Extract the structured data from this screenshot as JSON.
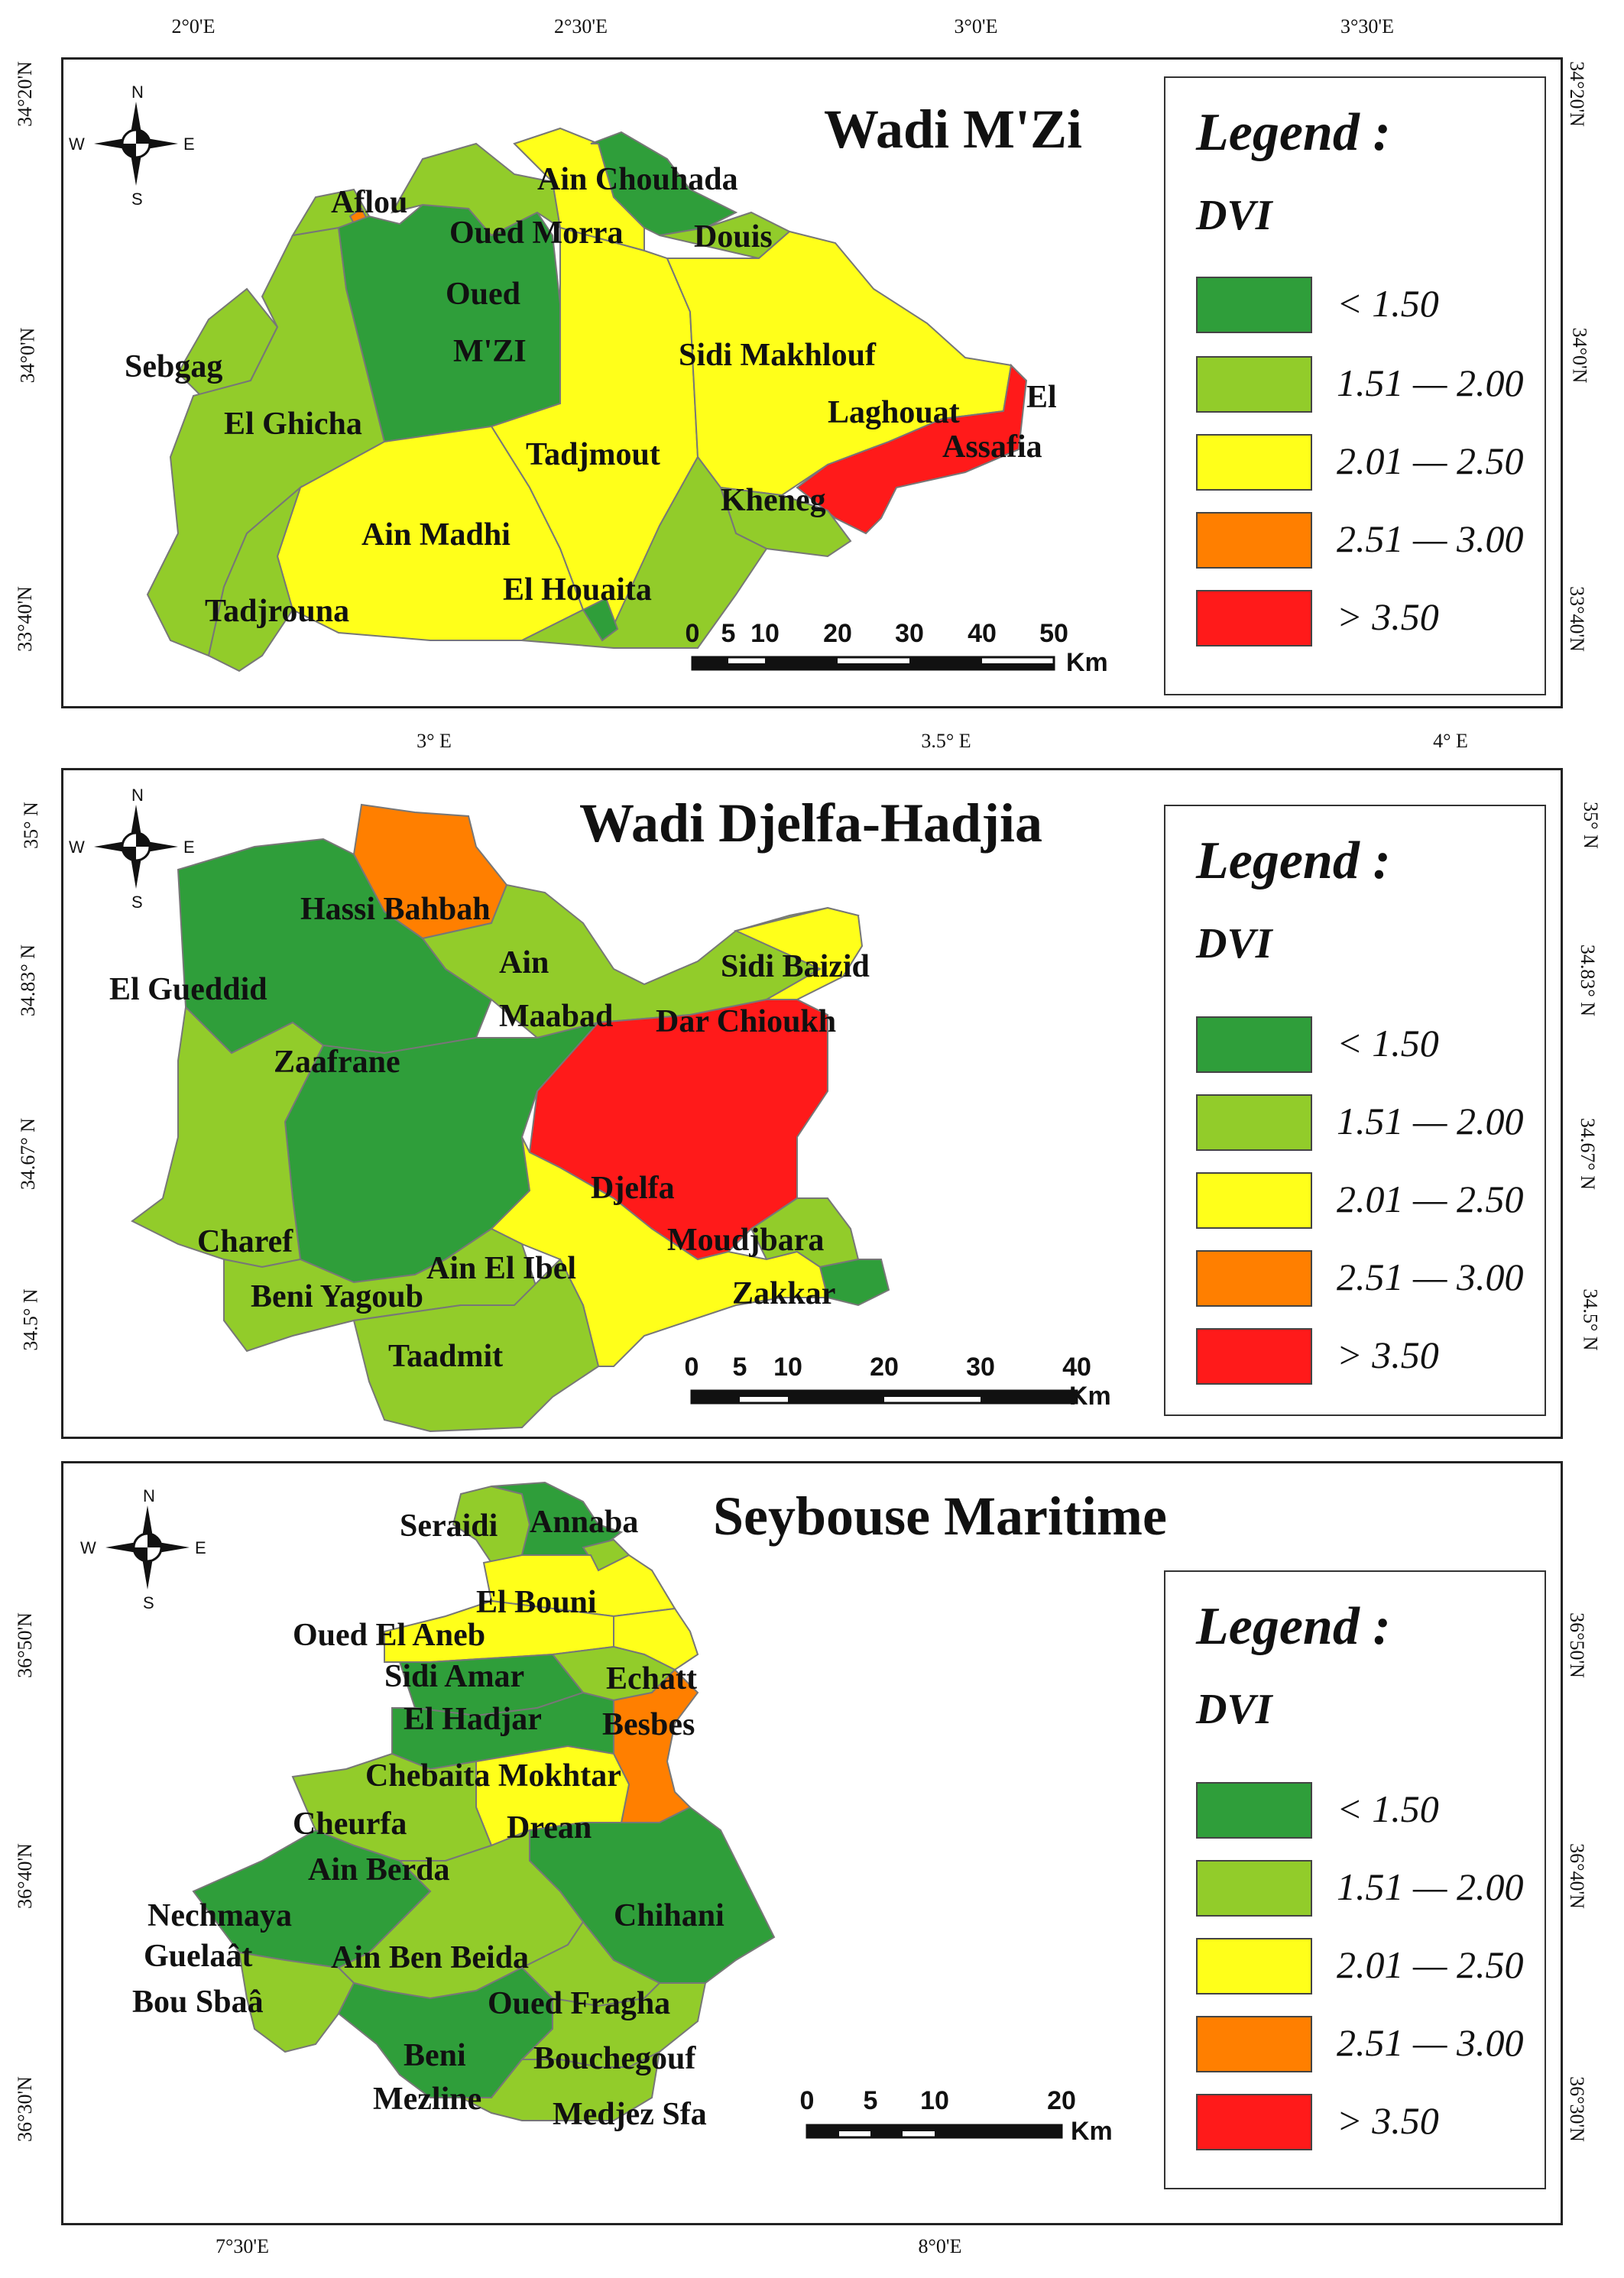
{
  "colors": {
    "dark_green": "#2f9e3a",
    "light_green": "#92cc2a",
    "yellow": "#ffff1a",
    "orange": "#ff7f00",
    "red": "#ff1a1a"
  },
  "compass": {
    "n": "N",
    "s": "S",
    "e": "E",
    "w": "W"
  },
  "legend": {
    "title": "Legend :",
    "subtitle": "DVI",
    "classes": [
      {
        "label": "< 1.50",
        "color": "#2f9e3a"
      },
      {
        "label": "1.51 — 2.00",
        "color": "#92cc2a"
      },
      {
        "label": "2.01 — 2.50",
        "color": "#ffff1a"
      },
      {
        "label": "2.51 — 3.00",
        "color": "#ff7f00"
      },
      {
        "label": "> 3.50",
        "color": "#ff1a1a"
      }
    ]
  },
  "panels": [
    {
      "title": "Wadi M'Zi",
      "lon_ticks": [
        "2°0'E",
        "2°30'E",
        "3°0'E",
        "3°30'E"
      ],
      "lat_ticks": [
        "34°20'N",
        "34°0'N",
        "33°40'N"
      ],
      "scale_labels": [
        "0",
        "5",
        "10",
        "20",
        "30",
        "40",
        "50"
      ],
      "scale_unit": "Km",
      "places": [
        "Aflou",
        "Ain Chouhada",
        "Oued Morra",
        "Douis",
        "Oued",
        "M'ZI",
        "Sebgag",
        "Sidi Makhlouf",
        "El",
        "Laghouat",
        "Assafia",
        "El Ghicha",
        "Tadjmout",
        "Kheneg",
        "Ain Madhi",
        "El Houaita",
        "Tadjrouna"
      ]
    },
    {
      "title": "Wadi Djelfa-Hadjia",
      "lon_ticks": [
        "3° E",
        "3.5° E",
        "4° E"
      ],
      "lat_ticks": [
        "35° N",
        "34.83° N",
        "34.67° N",
        "34.5° N"
      ],
      "scale_labels": [
        "0",
        "5",
        "10",
        "20",
        "30",
        "40"
      ],
      "scale_unit": "Km",
      "places": [
        "Hassi Bahbah",
        "Sidi Baizid",
        "Ain",
        "Maabad",
        "El Gueddid",
        "Dar Chioukh",
        "Zaafrane",
        "Djelfa",
        "Charef",
        "Moudjbara",
        "Ain El Ibel",
        "Zakkar",
        "Beni Yagoub",
        "Taadmit"
      ]
    },
    {
      "title": "Seybouse Maritime",
      "lon_ticks": [
        "7°30'E",
        "8°0'E"
      ],
      "lat_ticks": [
        "36°50'N",
        "36°40'N",
        "36°30'N"
      ],
      "scale_labels": [
        "0",
        "5",
        "10",
        "20"
      ],
      "scale_unit": "Km",
      "places": [
        "Seraidi",
        "Annaba",
        "El Bouni",
        "Oued El Aneb",
        "Sidi Amar",
        "Echatt",
        "El Hadjar",
        "Besbes",
        "Chebaita Mokhtar",
        "Cheurfa",
        "Drean",
        "Ain Berda",
        "Nechmaya",
        "Chihani",
        "Guelaât",
        "Ain Ben Beida",
        "Bou Sbaâ",
        "Oued Fragha",
        "Beni",
        "Bouchegouf",
        "Mezline",
        "Medjez Sfa"
      ]
    }
  ]
}
